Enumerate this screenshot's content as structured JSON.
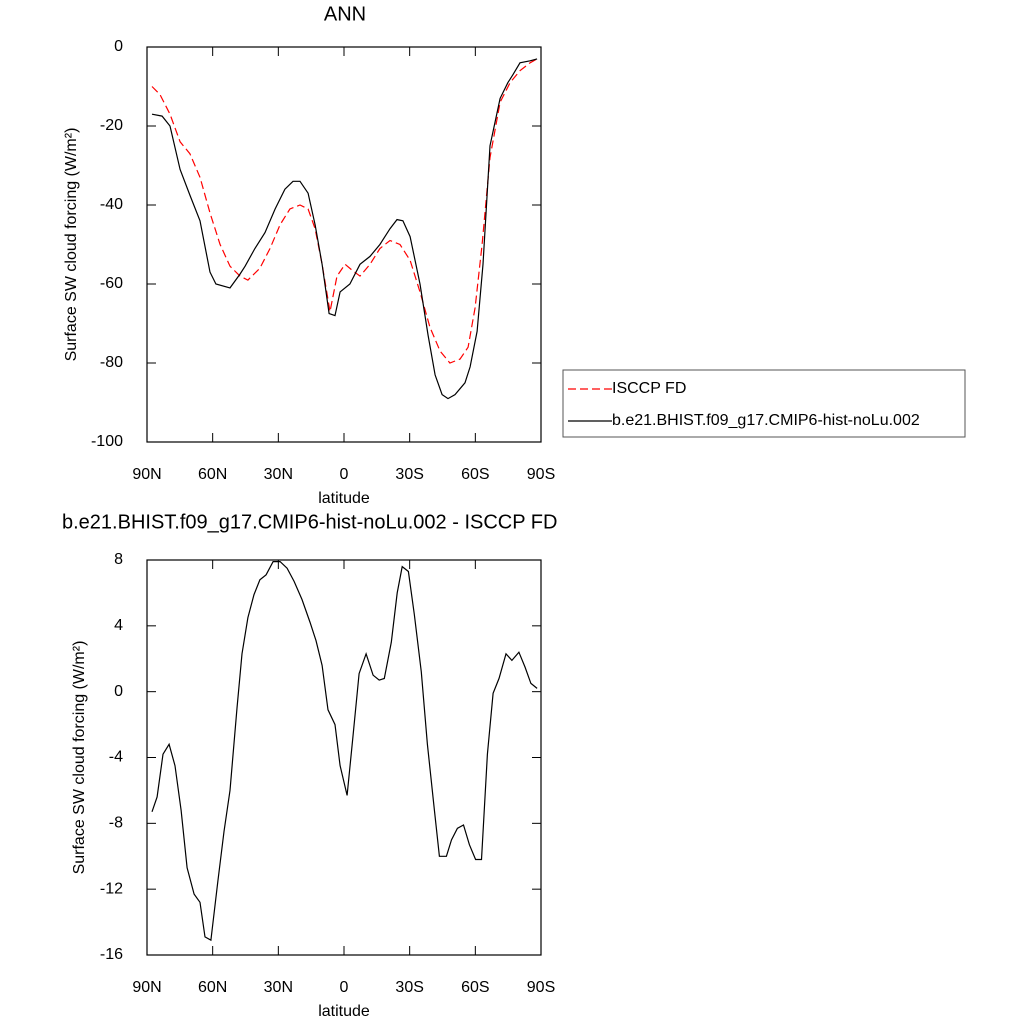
{
  "chart_data": [
    {
      "type": "line",
      "title": "ANN",
      "xlabel": "latitude",
      "ylabel": "Surface SW cloud forcing (W/m²)",
      "xlim": [
        90,
        -90
      ],
      "xticks": [
        {
          "value": 90,
          "label": "90N"
        },
        {
          "value": 60,
          "label": "60N"
        },
        {
          "value": 30,
          "label": "30N"
        },
        0,
        {
          "value": -30,
          "label": "30S"
        },
        {
          "value": -60,
          "label": "60S"
        },
        {
          "value": -90,
          "label": "90S"
        }
      ],
      "ylim": [
        -100,
        0
      ],
      "yticks": [
        0,
        -20,
        -40,
        -60,
        -80,
        -100
      ],
      "legend": "right",
      "series": [
        {
          "name": "ISCCP FD",
          "color": "#ff0000",
          "dash": true,
          "x": [
            87.7,
            84.1,
            79.5,
            74.9,
            70.4,
            65.8,
            61.2,
            56.6,
            52.1,
            47.5,
            43.9,
            38.4,
            33.8,
            29.2,
            24.7,
            20.1,
            16.4,
            13.2,
            10,
            6.4,
            3.2,
            -0.5,
            -3.7,
            -7.3,
            -11.9,
            -16.4,
            -21,
            -25.6,
            -30.2,
            -34.7,
            -39.3,
            -43.9,
            -48.4,
            -53,
            -56.7,
            -59.9,
            -63.1,
            -66.7,
            -71.3,
            -75.9,
            -80.4,
            -85,
            -88.2
          ],
          "values": [
            -10,
            -12,
            -17,
            -24,
            -27,
            -33,
            -42,
            -50,
            -55.5,
            -58,
            -59,
            -56,
            -51,
            -45,
            -41,
            -40,
            -41,
            -46,
            -55,
            -67,
            -58,
            -55,
            -56.5,
            -58,
            -55,
            -51,
            -49,
            -50,
            -54,
            -62,
            -71,
            -77,
            -80,
            -79,
            -76,
            -66,
            -50,
            -28,
            -14,
            -9,
            -6,
            -4,
            -3
          ]
        },
        {
          "name": "b.e21.BHIST.f09_g17.CMIP6-hist-noLu.002",
          "color": "#000000",
          "dash": false,
          "x": [
            87.7,
            83.1,
            79.5,
            74.9,
            70.4,
            65.8,
            61.2,
            58.5,
            52.1,
            47.5,
            45.2,
            40.7,
            36.1,
            31.5,
            27,
            23.3,
            20.1,
            16.4,
            13.2,
            10,
            6.8,
            4.1,
            1.8,
            -2.7,
            -7.3,
            -11.9,
            -16.4,
            -21,
            -24.2,
            -26.9,
            -30.2,
            -34.7,
            -38.4,
            -41.6,
            -44.8,
            -47.5,
            -50.7,
            -55.3,
            -57.6,
            -60.8,
            -63.5,
            -66.7,
            -71.3,
            -74.9,
            -77.2,
            -80.4,
            -85,
            -88.2
          ],
          "values": [
            -17,
            -17.5,
            -20,
            -31,
            -37.5,
            -44,
            -57,
            -60,
            -61,
            -57.5,
            -55.5,
            -51,
            -47,
            -41,
            -36,
            -34,
            -34,
            -37,
            -45,
            -55,
            -67.5,
            -68,
            -62,
            -60,
            -55,
            -53,
            -50,
            -46,
            -43.7,
            -44,
            -48,
            -60,
            -73,
            -83,
            -88,
            -89,
            -88,
            -85,
            -81,
            -72,
            -55,
            -25,
            -13,
            -9,
            -7,
            -4,
            -3.5,
            -3
          ]
        }
      ]
    },
    {
      "type": "line",
      "title": "b.e21.BHIST.f09_g17.CMIP6-hist-noLu.002 - ISCCP FD",
      "xlabel": "latitude",
      "ylabel": "Surface SW cloud forcing (W/m²)",
      "xlim": [
        90,
        -90
      ],
      "xticks": [
        {
          "value": 90,
          "label": "90N"
        },
        {
          "value": 60,
          "label": "60N"
        },
        {
          "value": 30,
          "label": "30N"
        },
        0,
        {
          "value": -30,
          "label": "30S"
        },
        {
          "value": -60,
          "label": "60S"
        },
        {
          "value": -90,
          "label": "90S"
        }
      ],
      "ylim": [
        -16,
        8
      ],
      "yticks": [
        8,
        4,
        0,
        -4,
        -8,
        -12,
        -16
      ],
      "series": [
        {
          "color": "#000000",
          "dash": false,
          "x": [
            87.7,
            85.4,
            82.7,
            79.9,
            77.2,
            74.4,
            71.7,
            68.5,
            65.8,
            63.5,
            60.8,
            57.6,
            54.8,
            52.1,
            48.9,
            46.6,
            43.9,
            41.1,
            38.4,
            35.6,
            32.4,
            29.2,
            26,
            22.8,
            19.2,
            15.5,
            12.8,
            10,
            7.3,
            4.1,
            1.8,
            -1.4,
            -4.1,
            -6.9,
            -10.1,
            -13.3,
            -16.1,
            -18.4,
            -21.6,
            -24.3,
            -26.6,
            -29.4,
            -32.1,
            -35.3,
            -38.1,
            -41.3,
            -43.6,
            -46.8,
            -49.1,
            -51.8,
            -54.6,
            -57.3,
            -60.1,
            -62.8,
            -65.5,
            -68.1,
            -70.8,
            -74,
            -76.7,
            -79.9,
            -82.7,
            -85.4,
            -88.2
          ],
          "values": [
            -7.3,
            -6.4,
            -3.8,
            -3.2,
            -4.5,
            -7.2,
            -10.7,
            -12.3,
            -12.8,
            -14.9,
            -15.1,
            -11.5,
            -8.5,
            -6,
            -1,
            2.3,
            4.5,
            5.9,
            6.8,
            7.1,
            7.9,
            7.9,
            7.5,
            6.7,
            5.6,
            4.2,
            3.1,
            1.6,
            -1.1,
            -2,
            -4.5,
            -6.3,
            -2.7,
            1.1,
            2.3,
            1,
            0.7,
            0.8,
            3,
            6,
            7.6,
            7.3,
            4.7,
            1.2,
            -3.2,
            -7.2,
            -10,
            -10,
            -9,
            -8.3,
            -8.1,
            -9.3,
            -10.2,
            -10.2,
            -3.8,
            -0.1,
            0.8,
            2.3,
            1.9,
            2.4,
            1.5,
            0.5,
            0.2
          ]
        }
      ]
    }
  ]
}
